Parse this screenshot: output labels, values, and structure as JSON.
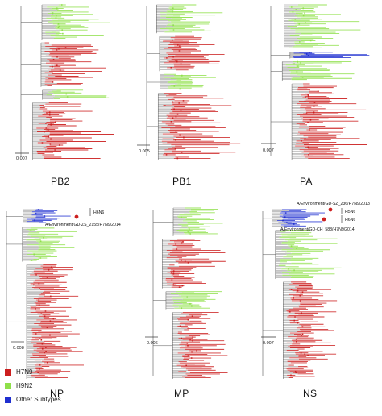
{
  "colors": {
    "H7N9": "#cc1f1f",
    "H9N2": "#8fe04a",
    "Other Subtypes": "#1f2fd0",
    "branch": "#555555"
  },
  "panels": [
    {
      "id": "PB2",
      "label": "PB2",
      "scale_bar": "0.007",
      "clades": [
        {
          "color": "H9N2",
          "share": 0.24
        },
        {
          "color": "H7N9",
          "share": 0.3
        },
        {
          "color": "H9N2",
          "share": 0.08
        },
        {
          "color": "H7N9",
          "share": 0.38
        }
      ],
      "annotations": []
    },
    {
      "id": "PB1",
      "label": "PB1",
      "scale_bar": "0.005",
      "clades": [
        {
          "color": "H9N2",
          "share": 0.2
        },
        {
          "color": "H7N9",
          "share": 0.24
        },
        {
          "color": "H9N2",
          "share": 0.12
        },
        {
          "color": "H7N9",
          "share": 0.44
        }
      ],
      "annotations": []
    },
    {
      "id": "PA",
      "label": "PA",
      "scale_bar": "0.007",
      "clades": [
        {
          "color": "H9N2",
          "share": 0.3
        },
        {
          "color": "Other Subtypes",
          "share": 0.06
        },
        {
          "color": "H9N2",
          "share": 0.14
        },
        {
          "color": "H7N9",
          "share": 0.5
        }
      ],
      "annotations": []
    },
    {
      "id": "NP",
      "label": "NP",
      "scale_bar": "0.008",
      "clades": [
        {
          "color": "Other Subtypes",
          "share": 0.1
        },
        {
          "color": "H9N2",
          "share": 0.22
        },
        {
          "color": "H7N9",
          "share": 0.68
        }
      ],
      "annotations": [
        {
          "text": "H6N6",
          "kind": "bracket"
        },
        {
          "text": "A/Environment/GD-ZS_2155/H7N9/2014",
          "kind": "strain"
        }
      ]
    },
    {
      "id": "MP",
      "label": "MP",
      "scale_bar": "0.006",
      "clades": [
        {
          "color": "H9N2",
          "share": 0.18
        },
        {
          "color": "H7N9",
          "share": 0.3
        },
        {
          "color": "H9N2",
          "share": 0.12
        },
        {
          "color": "H7N9",
          "share": 0.4
        }
      ],
      "annotations": []
    },
    {
      "id": "NS",
      "label": "NS",
      "scale_bar": "0.007",
      "clades": [
        {
          "color": "Other Subtypes",
          "share": 0.12
        },
        {
          "color": "H9N2",
          "share": 0.3
        },
        {
          "color": "H7N9",
          "share": 0.58
        }
      ],
      "annotations": [
        {
          "text": "A/Environment/GD-SZ_236/H7N9/2013",
          "kind": "strain"
        },
        {
          "text": "H5N6",
          "kind": "bracket"
        },
        {
          "text": "H6N6",
          "kind": "bracket"
        },
        {
          "text": "A/Environment/GD-CH_588/H7N9/2014",
          "kind": "strain"
        }
      ]
    }
  ],
  "legend": [
    {
      "label": "H7N9",
      "color": "#cc1f1f"
    },
    {
      "label": "H9N2",
      "color": "#8fe04a"
    },
    {
      "label": "Other Subtypes",
      "color": "#1f2fd0"
    }
  ]
}
